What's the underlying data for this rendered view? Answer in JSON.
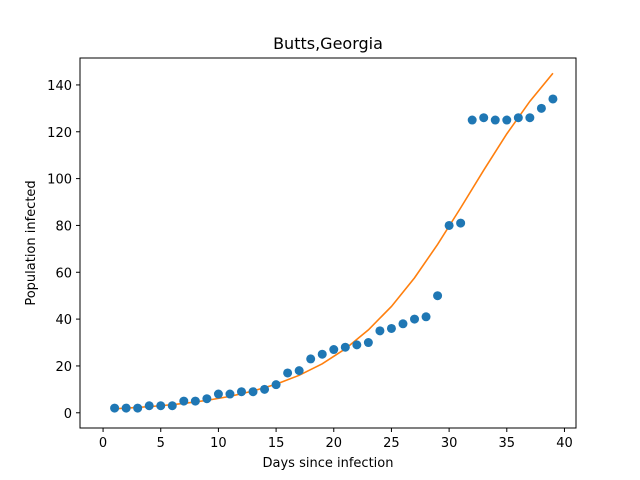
{
  "chart_data": {
    "type": "scatter",
    "title": "Butts,Georgia",
    "xlabel": "Days since infection",
    "ylabel": "Population infected",
    "xlim": [
      -2,
      41
    ],
    "ylim": [
      -6.5,
      151.5
    ],
    "xticks": [
      0,
      5,
      10,
      15,
      20,
      25,
      30,
      35,
      40
    ],
    "yticks": [
      0,
      20,
      40,
      60,
      80,
      100,
      120,
      140
    ],
    "grid": false,
    "series": [
      {
        "type": "scatter",
        "color": "#1f77b4",
        "x": [
          1,
          2,
          3,
          4,
          5,
          6,
          7,
          8,
          9,
          10,
          11,
          12,
          13,
          14,
          15,
          16,
          17,
          18,
          19,
          20,
          21,
          22,
          23,
          24,
          25,
          26,
          27,
          28,
          29,
          30,
          31,
          32,
          33,
          34,
          35,
          36,
          37,
          38,
          39
        ],
        "y": [
          2,
          2,
          2,
          3,
          3,
          3,
          5,
          5,
          6,
          8,
          8,
          9,
          9,
          10,
          12,
          17,
          18,
          23,
          25,
          27,
          28,
          29,
          30,
          35,
          36,
          38,
          40,
          41,
          50,
          80,
          81,
          125,
          126,
          125,
          125,
          126,
          126,
          130,
          134
        ]
      },
      {
        "type": "line",
        "color": "#ff7f0e",
        "x": [
          1,
          3,
          5,
          7,
          9,
          11,
          13,
          15,
          17,
          19,
          21,
          23,
          25,
          27,
          29,
          31,
          33,
          35,
          37,
          39
        ],
        "y": [
          1.7,
          2.3,
          3.0,
          4.0,
          5.3,
          7.0,
          9.3,
          12.2,
          16.0,
          20.9,
          27.3,
          35.4,
          45.4,
          57.6,
          71.9,
          87.5,
          103.6,
          119.1,
          133.0,
          145.0
        ]
      }
    ]
  }
}
